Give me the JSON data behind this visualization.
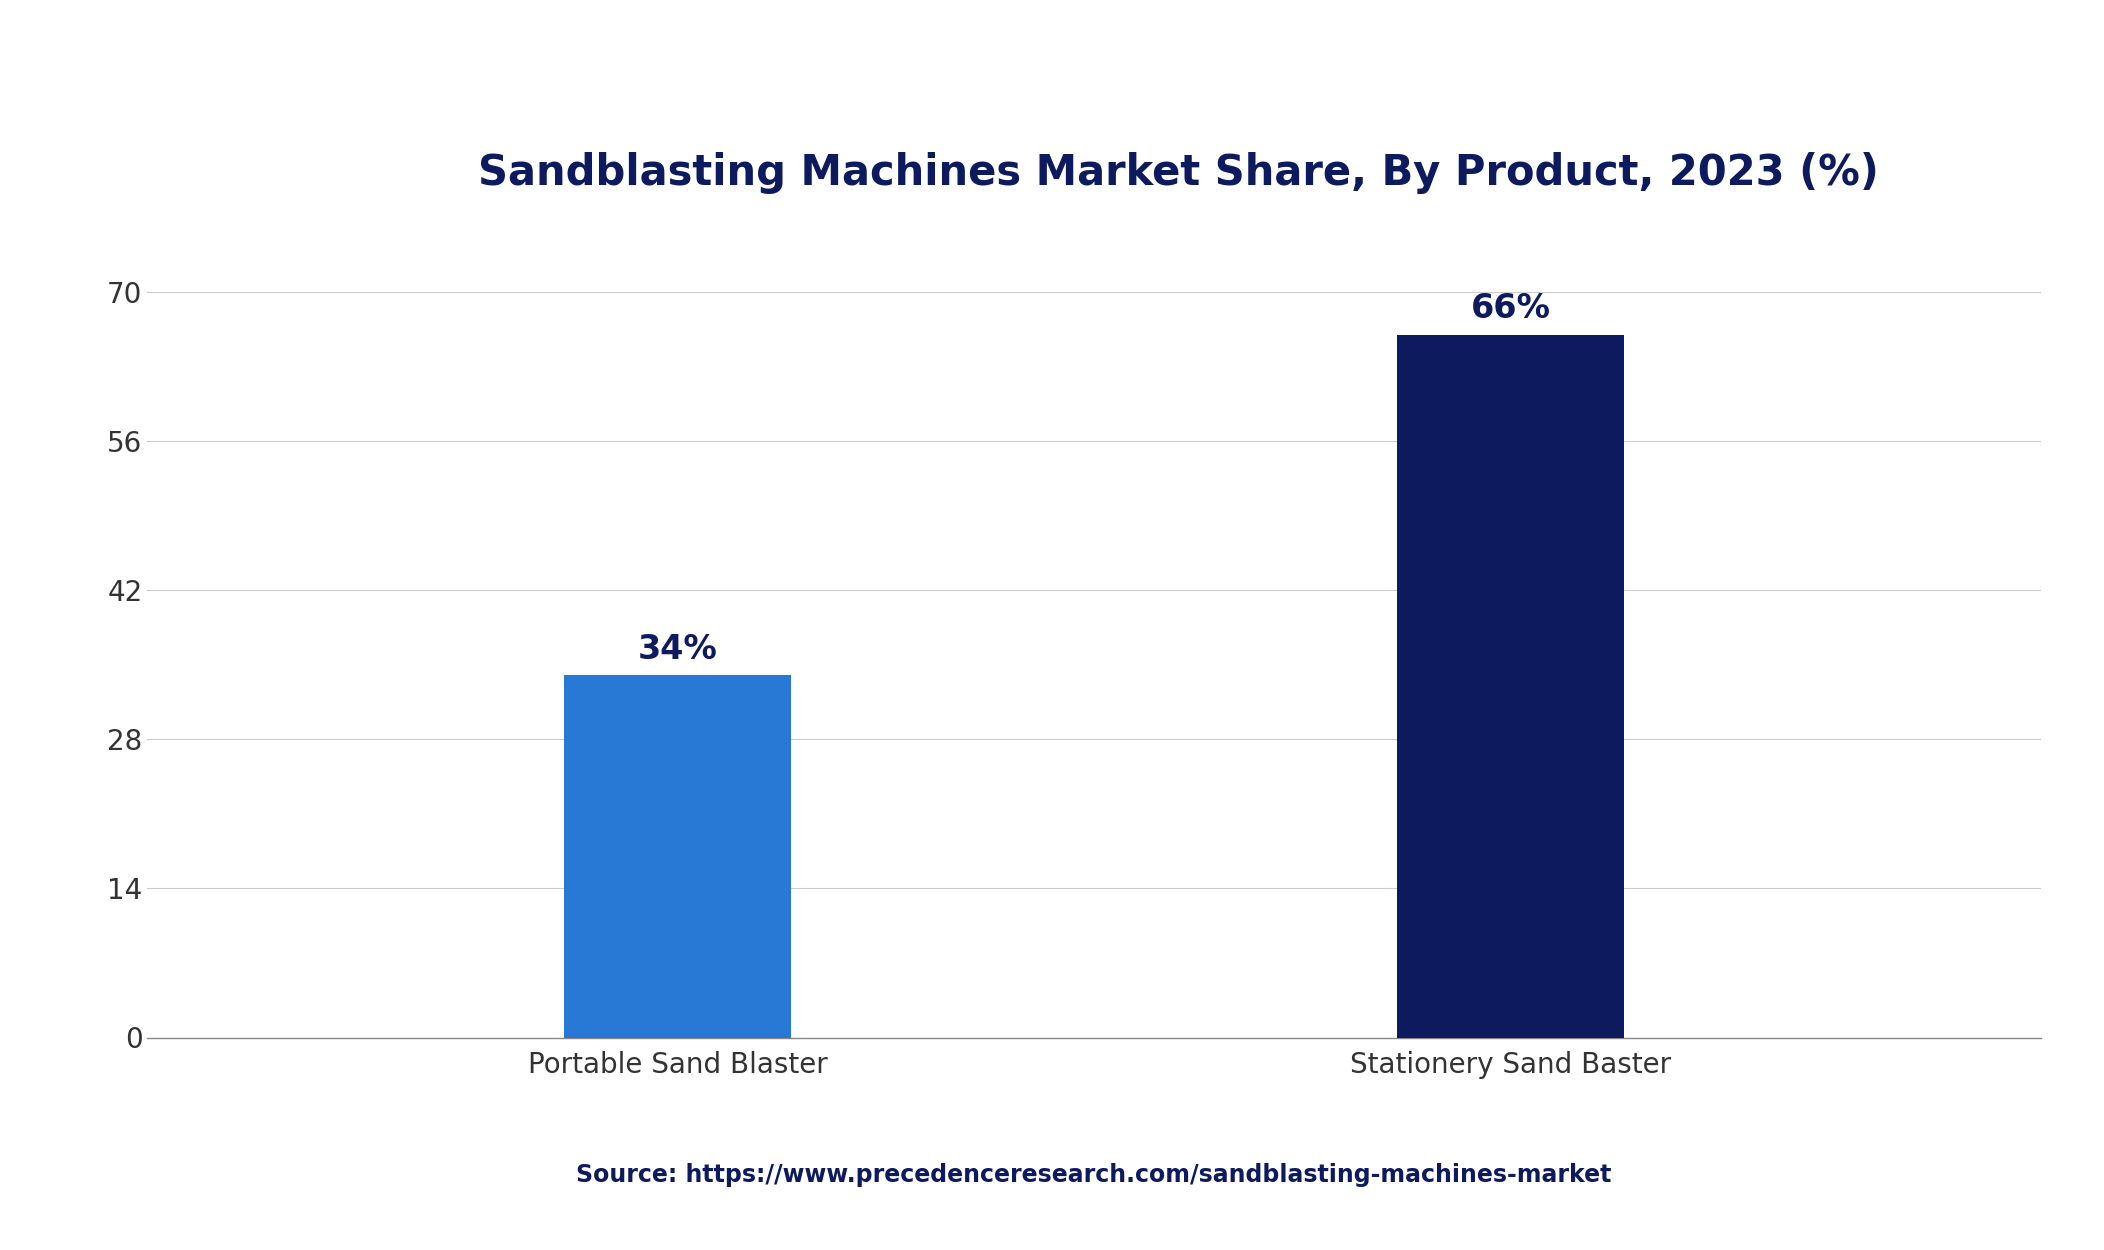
{
  "title": "Sandblasting Machines Market Share, By Product, 2023 (%)",
  "categories": [
    "Portable Sand Blaster",
    "Stationery Sand Baster"
  ],
  "values": [
    34,
    66
  ],
  "bar_colors": [
    "#2878D6",
    "#0D1B5E"
  ],
  "bar_labels": [
    "34%",
    "66%"
  ],
  "yticks": [
    0,
    14,
    28,
    42,
    56,
    70
  ],
  "ylim": [
    0,
    75
  ],
  "background_color": "#ffffff",
  "plot_background": "#ffffff",
  "title_color": "#0D1B5E",
  "tick_label_color": "#333333",
  "source_text": "Source: https://www.precedenceresearch.com/sandblasting-machines-market",
  "source_color": "#0D1B5E",
  "top_bar_color": "#0D1B5E",
  "title_fontsize": 30,
  "label_fontsize": 24,
  "tick_fontsize": 20,
  "source_fontsize": 17,
  "bar_width": 0.12,
  "x_positions": [
    0.28,
    0.72
  ]
}
